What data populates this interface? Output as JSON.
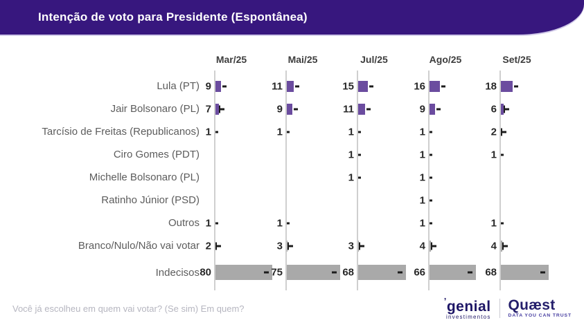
{
  "title": "Intenção de voto para Presidente (Espontânea)",
  "chart_data": {
    "type": "bar",
    "orientation": "horizontal bars grouped in 5 survey-wave columns",
    "title": "Intenção de voto para Presidente (Espontânea)",
    "columns": [
      "Mar/25",
      "Mai/25",
      "Jul/25",
      "Ago/25",
      "Set/25"
    ],
    "rows": [
      {
        "label": "Lula (PT)",
        "series_color": "purple",
        "values": [
          9,
          11,
          15,
          16,
          18
        ]
      },
      {
        "label": "Jair Bolsonaro (PL)",
        "series_color": "purple",
        "values": [
          7,
          9,
          11,
          9,
          6
        ]
      },
      {
        "label": "Tarcísio de Freitas (Republicanos)",
        "series_color": "purple",
        "values": [
          1,
          1,
          1,
          1,
          2
        ]
      },
      {
        "label": "Ciro Gomes (PDT)",
        "series_color": "purple",
        "values": [
          null,
          null,
          1,
          1,
          1
        ]
      },
      {
        "label": "Michelle Bolsonaro (PL)",
        "series_color": "purple",
        "values": [
          null,
          null,
          1,
          1,
          null
        ]
      },
      {
        "label": "Ratinho Júnior (PSD)",
        "series_color": "purple",
        "values": [
          null,
          null,
          null,
          1,
          null
        ]
      },
      {
        "label": "Outros",
        "series_color": "gray",
        "values": [
          1,
          1,
          null,
          1,
          1
        ]
      },
      {
        "label": "Branco/Nulo/Não vai votar",
        "series_color": "gray",
        "values": [
          2,
          3,
          3,
          4,
          4
        ]
      },
      {
        "label": "Indecisos",
        "series_color": "gray",
        "values": [
          80,
          75,
          68,
          66,
          68
        ],
        "emphasis": true
      }
    ],
    "value_range": [
      0,
      100
    ],
    "grid": "vertical zero-axis line per column",
    "colors": {
      "banner": "#37177E",
      "purple": "#6B4C9F",
      "gray": "#A9A9A9",
      "gridline": "#CFCFCF",
      "marker": "#1C1C1C"
    }
  },
  "footer": {
    "question": "Você já escolheu em quem vai votar? (Se sim) Em quem?",
    "logos": {
      "genial": {
        "name": "genial",
        "subtext": "investimentos"
      },
      "quaest": {
        "name": "Quæst",
        "tagline": "DATA YOU CAN TRUST"
      }
    }
  }
}
